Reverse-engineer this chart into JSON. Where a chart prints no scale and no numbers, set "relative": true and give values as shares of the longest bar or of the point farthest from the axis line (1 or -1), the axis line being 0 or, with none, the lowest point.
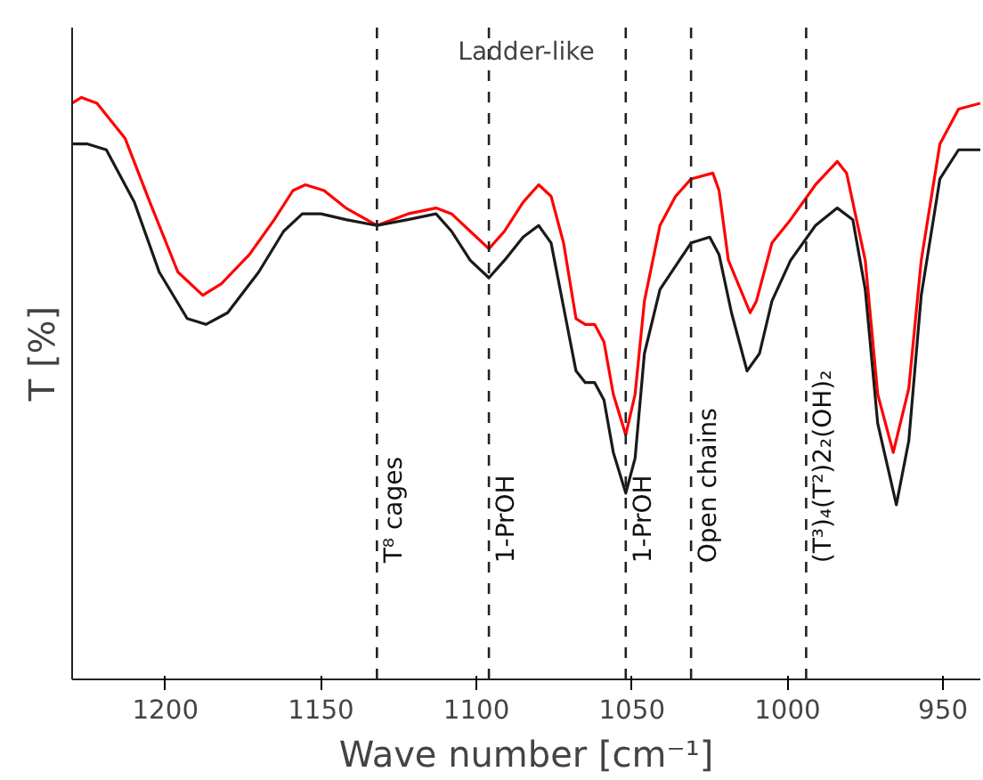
{
  "chart_data": {
    "type": "line",
    "relative": true,
    "xlabel": "Wave number [cm⁻¹]",
    "ylabel": "T [%]",
    "xlim": [
      1230,
      938
    ],
    "xticks": [
      1200,
      1150,
      1100,
      1050,
      1000,
      950
    ],
    "grid": false,
    "marker": "none",
    "line_style": "solid",
    "series": [
      {
        "color": "#ff0000",
        "x": [
          1230,
          1227,
          1222,
          1213,
          1205,
          1196,
          1188,
          1182,
          1173,
          1165,
          1159,
          1155,
          1149,
          1142,
          1132,
          1122,
          1113,
          1108,
          1102,
          1096,
          1091,
          1085,
          1080,
          1076,
          1072,
          1068,
          1065,
          1062,
          1059,
          1056,
          1052,
          1049,
          1046,
          1041,
          1036,
          1031,
          1024,
          1022,
          1019,
          1012,
          1010,
          1005,
          999,
          991,
          984,
          981,
          975,
          971,
          966,
          961,
          957,
          951,
          945,
          938
        ],
        "values": [
          0.99,
          1.0,
          0.99,
          0.93,
          0.82,
          0.7,
          0.66,
          0.68,
          0.73,
          0.79,
          0.84,
          0.85,
          0.84,
          0.81,
          0.78,
          0.8,
          0.81,
          0.8,
          0.77,
          0.74,
          0.77,
          0.82,
          0.85,
          0.83,
          0.75,
          0.62,
          0.61,
          0.61,
          0.58,
          0.49,
          0.42,
          0.49,
          0.65,
          0.78,
          0.83,
          0.86,
          0.87,
          0.84,
          0.72,
          0.63,
          0.65,
          0.75,
          0.79,
          0.85,
          0.89,
          0.87,
          0.72,
          0.49,
          0.39,
          0.5,
          0.72,
          0.92,
          0.98,
          0.99
        ]
      },
      {
        "color": "#1a1a1a",
        "x": [
          1230,
          1225,
          1219,
          1210,
          1202,
          1193,
          1187,
          1180,
          1170,
          1162,
          1156,
          1150,
          1142,
          1132,
          1122,
          1113,
          1108,
          1102,
          1096,
          1091,
          1085,
          1080,
          1076,
          1072,
          1068,
          1065,
          1062,
          1059,
          1056,
          1052,
          1049,
          1046,
          1041,
          1036,
          1031,
          1025,
          1022,
          1018,
          1013,
          1009,
          1005,
          999,
          991,
          984,
          979,
          975,
          971,
          965,
          961,
          957,
          951,
          945,
          938
        ],
        "values": [
          0.92,
          0.92,
          0.91,
          0.82,
          0.7,
          0.62,
          0.61,
          0.63,
          0.7,
          0.77,
          0.8,
          0.8,
          0.79,
          0.78,
          0.79,
          0.8,
          0.77,
          0.72,
          0.69,
          0.72,
          0.76,
          0.78,
          0.75,
          0.64,
          0.53,
          0.51,
          0.51,
          0.48,
          0.39,
          0.32,
          0.38,
          0.56,
          0.67,
          0.71,
          0.75,
          0.76,
          0.73,
          0.63,
          0.53,
          0.56,
          0.65,
          0.72,
          0.78,
          0.81,
          0.79,
          0.67,
          0.44,
          0.3,
          0.41,
          0.66,
          0.86,
          0.91,
          0.91
        ]
      }
    ],
    "ref_lines": [
      {
        "axis": "x",
        "value": 1132,
        "label": "T⁸ cages",
        "color": "#222222",
        "line_style": "dashed"
      },
      {
        "axis": "x",
        "value": 1096,
        "label": "1-PrOH",
        "color": "#222222",
        "line_style": "dashed"
      },
      {
        "axis": "x",
        "value": 1052,
        "label": "1-PrOH",
        "color": "#222222",
        "line_style": "dashed"
      },
      {
        "axis": "x",
        "value": 1031,
        "label": "Open chains",
        "color": "#222222",
        "line_style": "dashed"
      },
      {
        "axis": "x",
        "value": 994,
        "label": "(T³)₄(T²)2₂(OH)₂",
        "color": "#222222",
        "line_style": "dashed"
      }
    ],
    "annotations": [
      "Ladder-like"
    ]
  }
}
